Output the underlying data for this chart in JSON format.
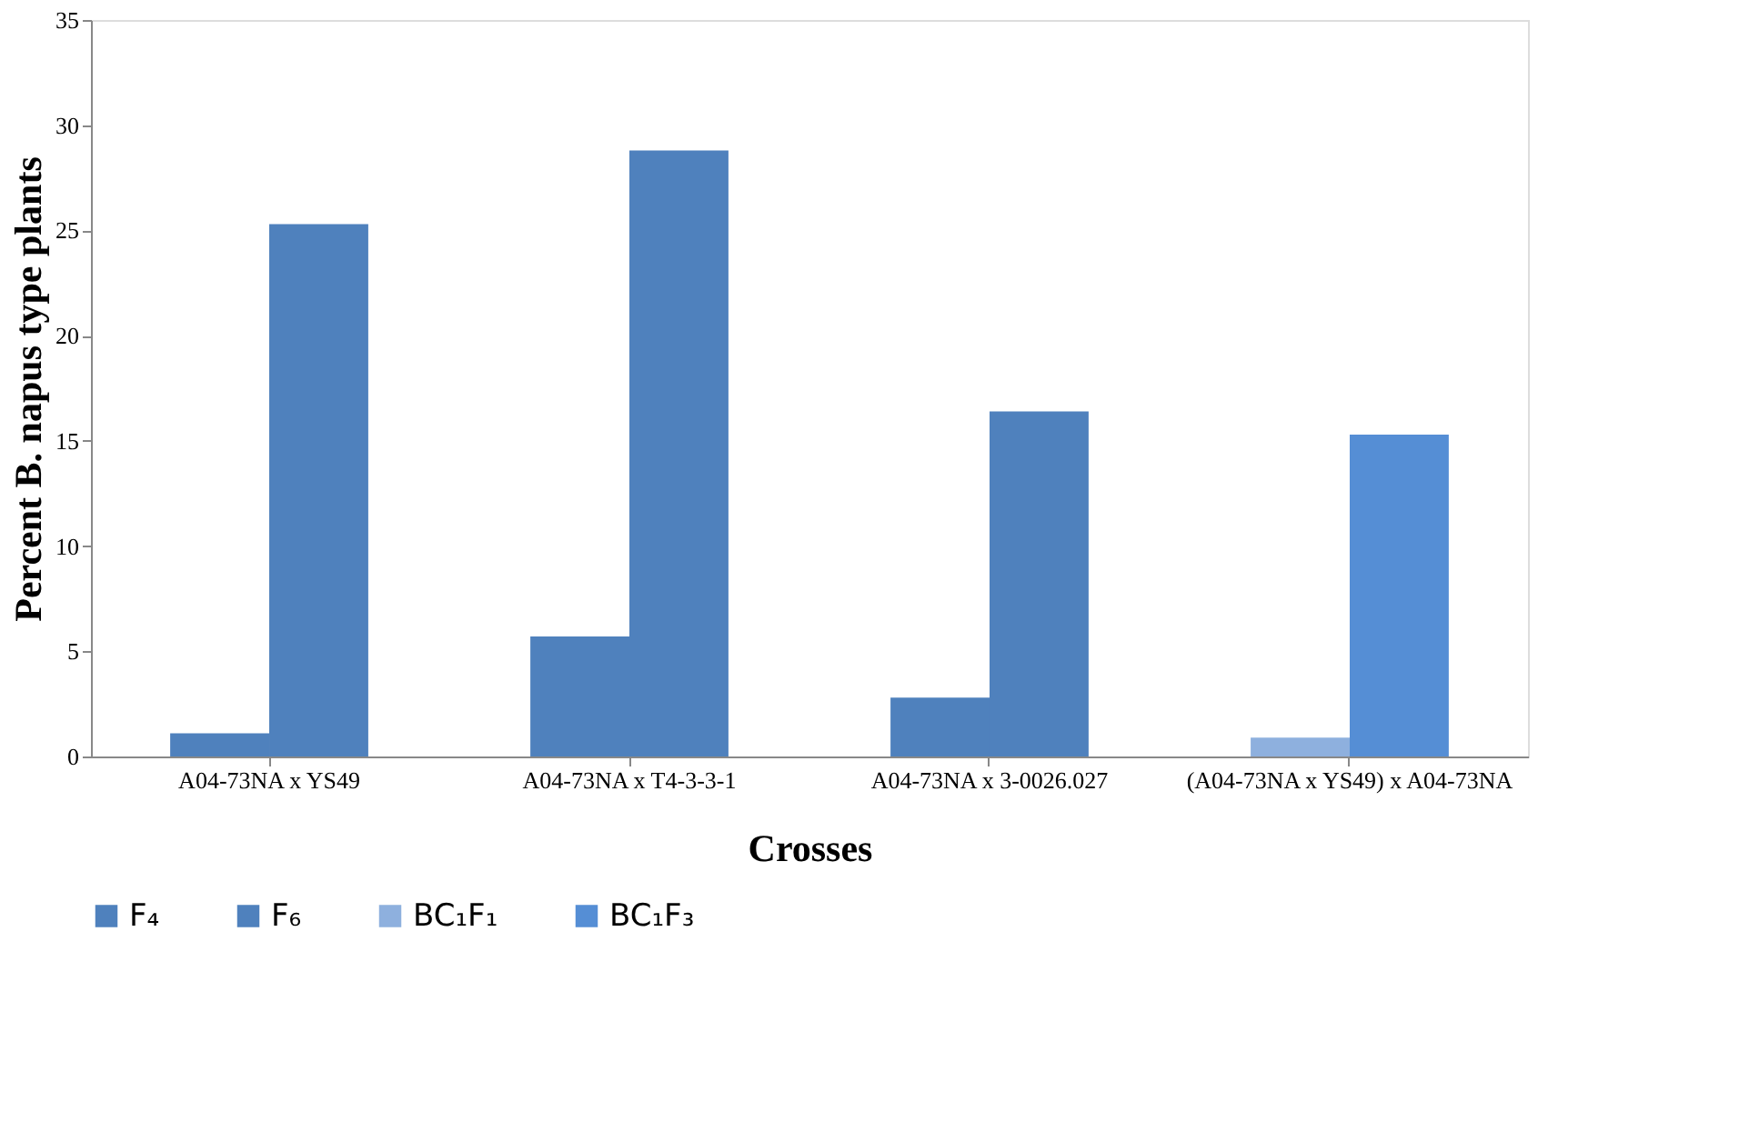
{
  "chart_data": {
    "type": "bar",
    "xlabel": "Crosses",
    "ylabel": "Percent B. napus type plants",
    "categories": [
      "A04-73NA x YS49",
      "A04-73NA x T4-3-3-1",
      "A04-73NA x 3-0026.027",
      "(A04-73NA x YS49) x A04-73NA"
    ],
    "series": [
      {
        "name": "F₄",
        "color": "#4f81bd",
        "values": [
          1.1,
          5.7,
          2.8,
          null
        ]
      },
      {
        "name": "F₆",
        "color": "#4f81bd",
        "values": [
          25.3,
          28.8,
          16.4,
          null
        ]
      },
      {
        "name": "BC₁F₁",
        "color": "#8eb0de",
        "values": [
          null,
          null,
          null,
          0.9
        ]
      },
      {
        "name": "BC₁F₃",
        "color": "#558ed5",
        "values": [
          null,
          null,
          null,
          15.3
        ]
      }
    ],
    "ylim": [
      0,
      35
    ],
    "yticks": [
      0,
      5,
      10,
      15,
      20,
      25,
      30,
      35
    ],
    "grid": false,
    "legend": "bottom"
  }
}
